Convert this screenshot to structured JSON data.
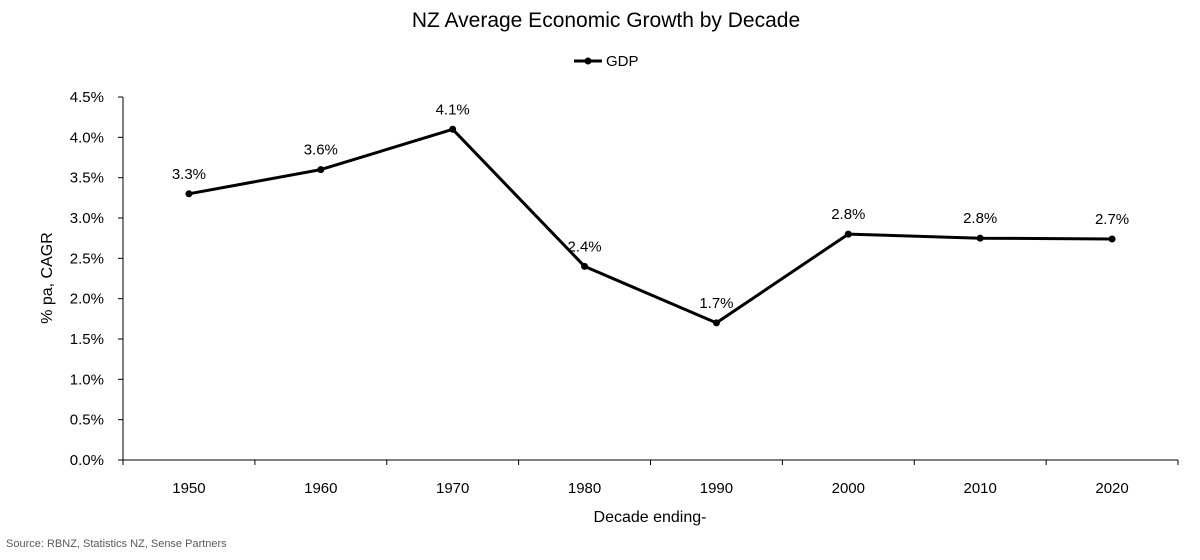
{
  "chart_data": {
    "type": "line",
    "title": "NZ Average Economic Growth by Decade",
    "categories": [
      "1950",
      "1960",
      "1970",
      "1980",
      "1990",
      "2000",
      "2010",
      "2020"
    ],
    "series": [
      {
        "name": "GDP",
        "values": [
          3.3,
          3.6,
          4.1,
          2.4,
          1.7,
          2.8,
          2.75,
          2.74
        ],
        "data_labels": [
          "3.3%",
          "3.6%",
          "4.1%",
          "2.4%",
          "1.7%",
          "2.8%",
          "2.8%",
          "2.7%"
        ],
        "color": "#000000",
        "marker": "circle"
      }
    ],
    "xlabel": "Decade ending-",
    "ylabel": "% pa, CAGR",
    "ylim": [
      0,
      4.5
    ],
    "yticks": [
      "0.0%",
      "0.5%",
      "1.0%",
      "1.5%",
      "2.0%",
      "2.5%",
      "3.0%",
      "3.5%",
      "4.0%",
      "4.5%"
    ],
    "grid": false,
    "legend_position": "top-center",
    "source_note": "Source: RBNZ, Statistics NZ, Sense Partners"
  }
}
